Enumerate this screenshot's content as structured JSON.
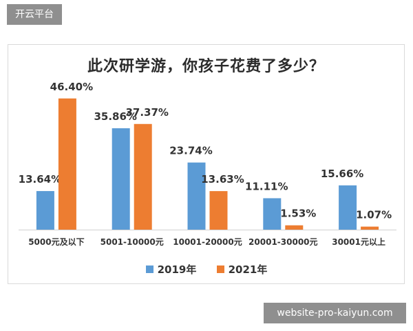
{
  "tag_label": "开云平台",
  "watermark": "website-pro-kaiyun.com",
  "chart_data": {
    "type": "bar",
    "title": "此次研学游，你孩子花费了多少？",
    "categories": [
      "5000元及以下",
      "5001-10000元",
      "10001-20000元",
      "20001-30000元",
      "30001元以上"
    ],
    "series": [
      {
        "name": "2019年",
        "values": [
          13.64,
          35.86,
          23.74,
          11.11,
          15.66
        ],
        "labels": [
          "13.64%",
          "35.86%",
          "23.74%",
          "11.11%",
          "15.66%"
        ],
        "color": "#5b9bd5"
      },
      {
        "name": "2021年",
        "values": [
          46.4,
          37.37,
          13.63,
          1.53,
          1.07
        ],
        "labels": [
          "46.40%",
          "37.37%",
          "13.63%",
          "1.53%",
          "1.07%"
        ],
        "color": "#ed7d31"
      }
    ],
    "ylim": [
      0,
      50
    ],
    "grid": false,
    "legend": "bottom"
  }
}
